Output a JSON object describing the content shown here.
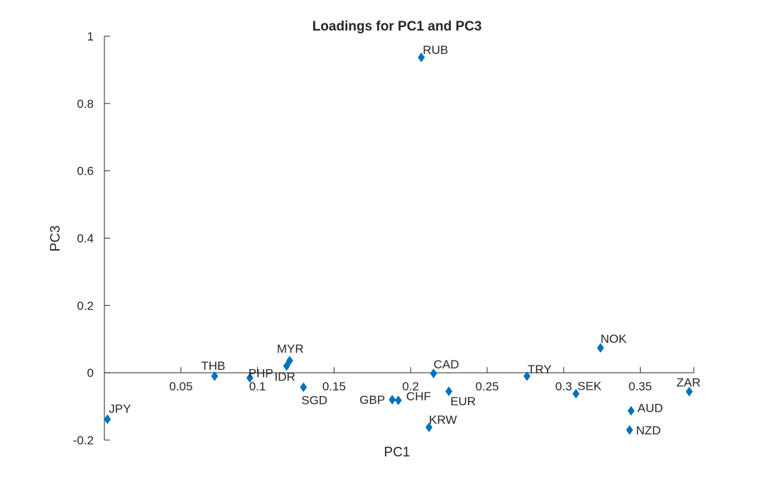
{
  "chart_data": {
    "type": "scatter",
    "title": "Loadings for PC1 and PC3",
    "xlabel": "PC1",
    "ylabel": "PC3",
    "xlim": [
      0.0,
      0.385
    ],
    "ylim": [
      -0.2,
      1.0
    ],
    "x_ticks": [
      "0.05",
      "0.1",
      "0.15",
      "0.2",
      "0.25",
      "0.3",
      "0.35"
    ],
    "x_tick_values": [
      0.05,
      0.1,
      0.15,
      0.2,
      0.25,
      0.3,
      0.35
    ],
    "y_ticks": [
      "-0.2",
      "0",
      "0.2",
      "0.4",
      "0.6",
      "0.8",
      "1"
    ],
    "y_tick_values": [
      -0.2,
      0,
      0.2,
      0.4,
      0.6,
      0.8,
      1.0
    ],
    "grid": false,
    "marker": "diamond",
    "marker_color": "#0072BD",
    "points": [
      {
        "label": "JPY",
        "x": 0.002,
        "y": -0.138
      },
      {
        "label": "THB",
        "x": 0.072,
        "y": -0.01
      },
      {
        "label": "PHP",
        "x": 0.095,
        "y": -0.015
      },
      {
        "label": "MYR",
        "x": 0.121,
        "y": 0.036
      },
      {
        "label": "IDR",
        "x": 0.119,
        "y": 0.02
      },
      {
        "label": "SGD",
        "x": 0.13,
        "y": -0.043
      },
      {
        "label": "GBP",
        "x": 0.188,
        "y": -0.08
      },
      {
        "label": "CHF",
        "x": 0.192,
        "y": -0.082
      },
      {
        "label": "RUB",
        "x": 0.207,
        "y": 0.937
      },
      {
        "label": "KRW",
        "x": 0.212,
        "y": -0.162
      },
      {
        "label": "CAD",
        "x": 0.215,
        "y": -0.002
      },
      {
        "label": "EUR",
        "x": 0.225,
        "y": -0.055
      },
      {
        "label": "TRY",
        "x": 0.276,
        "y": -0.01
      },
      {
        "label": "SEK",
        "x": 0.308,
        "y": -0.062
      },
      {
        "label": "NOK",
        "x": 0.324,
        "y": 0.074
      },
      {
        "label": "AUD",
        "x": 0.344,
        "y": -0.113
      },
      {
        "label": "NZD",
        "x": 0.343,
        "y": -0.17
      },
      {
        "label": "ZAR",
        "x": 0.382,
        "y": -0.056
      }
    ]
  }
}
